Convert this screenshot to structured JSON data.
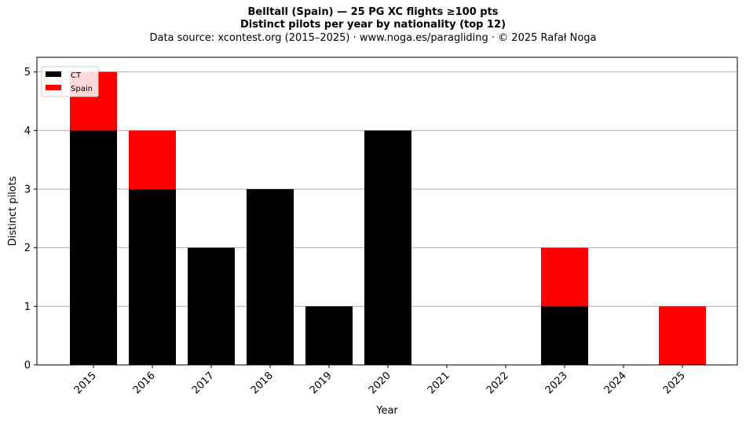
{
  "header": {
    "title": "Belltall (Spain)  —  25 PG XC flights ≥100 pts",
    "subtitle": "Distinct pilots per year by nationality (top 12)",
    "source": "Data source: xcontest.org (2015–2025)  ·  www.noga.es/paragliding  ·  © 2025 Rafał Noga"
  },
  "chart_data": {
    "type": "bar",
    "stacked": true,
    "title": "Belltall (Spain)  —  25 PG XC flights ≥100 pts",
    "subtitle": "Distinct pilots per year by nationality (top 12)",
    "xlabel": "Year",
    "ylabel": "Distinct pilots",
    "categories": [
      "2015",
      "2016",
      "2017",
      "2018",
      "2019",
      "2020",
      "2021",
      "2022",
      "2023",
      "2024",
      "2025"
    ],
    "series": [
      {
        "name": "CT",
        "color": "#000000",
        "values": [
          4,
          3,
          2,
          3,
          1,
          4,
          0,
          0,
          1,
          0,
          0
        ]
      },
      {
        "name": "Spain",
        "color": "#ff0000",
        "values": [
          1,
          1,
          0,
          0,
          0,
          0,
          0,
          0,
          1,
          0,
          1
        ]
      }
    ],
    "ylim": [
      0,
      5.25
    ],
    "yticks": [
      0,
      1,
      2,
      3,
      4,
      5
    ],
    "grid": "y",
    "legend_position": "top-left"
  }
}
